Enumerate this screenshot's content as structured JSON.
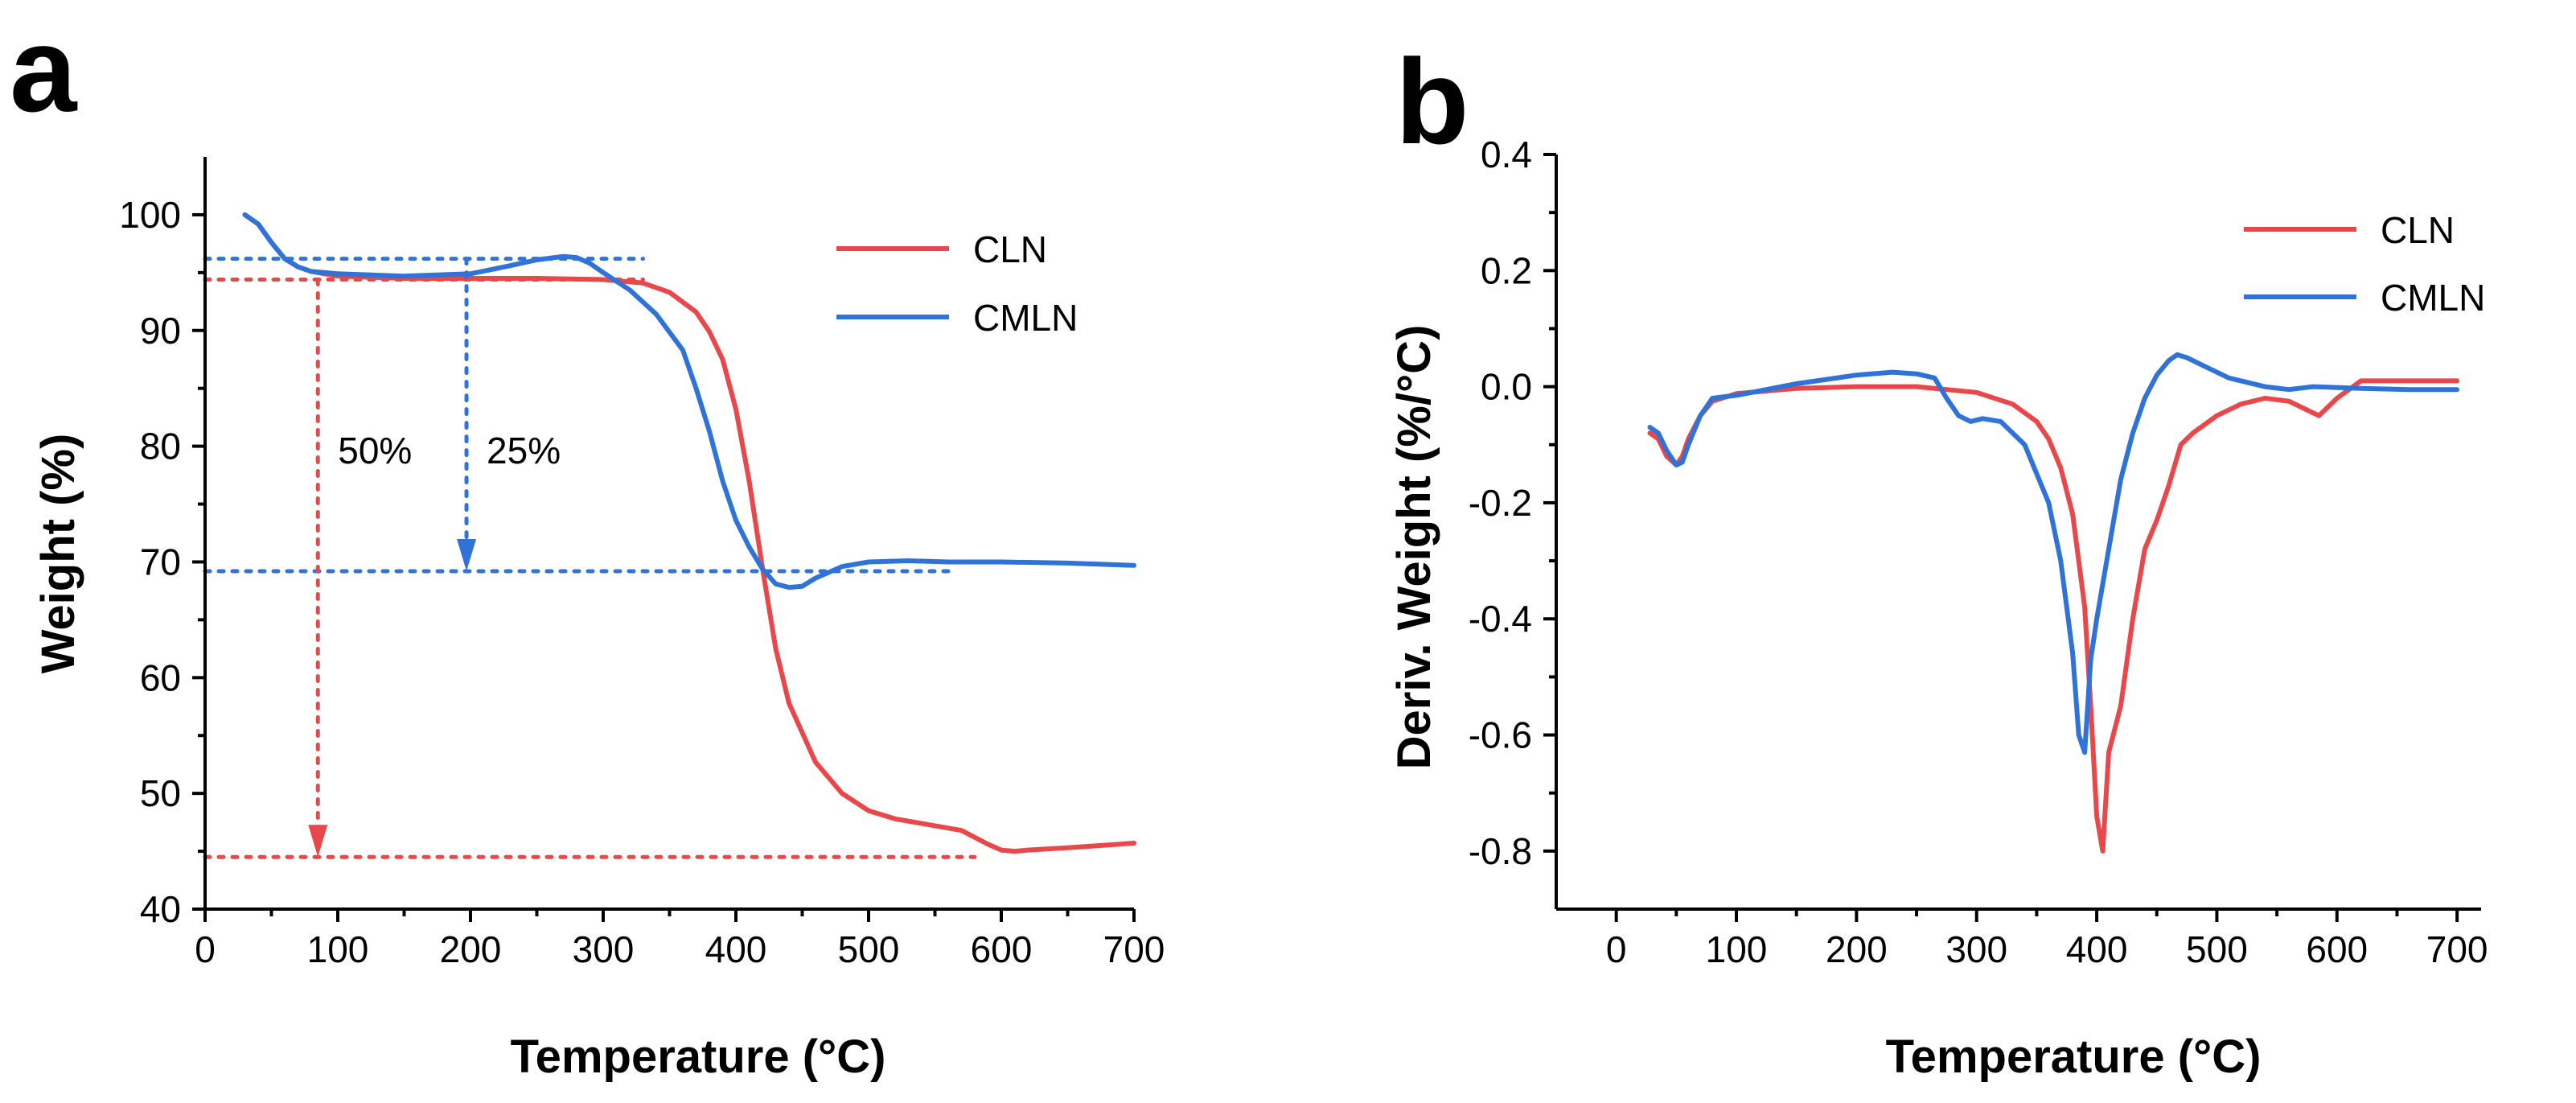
{
  "colors": {
    "CLN": "#e8484a",
    "CMLN": "#2f73d9",
    "axis": "#000000"
  },
  "chart_data": [
    {
      "panel": "a",
      "type": "line",
      "xlabel": "Temperature (°C)",
      "ylabel": "Weight (%)",
      "xlim": [
        0,
        700
      ],
      "ylim": [
        40,
        105
      ],
      "xticks": [
        0,
        100,
        200,
        300,
        400,
        500,
        600,
        700
      ],
      "yticks": [
        40,
        50,
        60,
        70,
        80,
        90,
        100
      ],
      "legend": {
        "position": "top-right",
        "entries": [
          "CLN",
          "CMLN"
        ]
      },
      "series": [
        {
          "name": "CLN",
          "x": [
            30,
            40,
            50,
            60,
            70,
            80,
            100,
            150,
            200,
            250,
            300,
            330,
            350,
            370,
            380,
            390,
            400,
            410,
            420,
            430,
            440,
            460,
            480,
            500,
            520,
            550,
            570,
            590,
            600,
            610,
            620,
            650,
            700
          ],
          "y": [
            100,
            99.2,
            97.6,
            96.2,
            95.5,
            95.1,
            94.7,
            94.5,
            94.5,
            94.5,
            94.4,
            94.1,
            93.3,
            91.6,
            89.9,
            87.5,
            83.2,
            77.0,
            69.5,
            62.5,
            57.8,
            52.7,
            50.0,
            48.5,
            47.8,
            47.2,
            46.8,
            45.6,
            45.1,
            45.0,
            45.1,
            45.3,
            45.7
          ]
        },
        {
          "name": "CMLN",
          "x": [
            30,
            40,
            50,
            60,
            70,
            80,
            100,
            150,
            200,
            230,
            250,
            270,
            280,
            290,
            300,
            320,
            340,
            360,
            370,
            380,
            390,
            400,
            410,
            420,
            430,
            440,
            450,
            460,
            480,
            500,
            530,
            560,
            600,
            650,
            700
          ],
          "y": [
            100,
            99.2,
            97.6,
            96.2,
            95.5,
            95.1,
            94.9,
            94.7,
            94.9,
            95.6,
            96.1,
            96.4,
            96.3,
            95.8,
            95.0,
            93.5,
            91.4,
            88.3,
            85.0,
            81.3,
            77.0,
            73.6,
            71.3,
            69.4,
            68.1,
            67.8,
            67.9,
            68.6,
            69.6,
            70.0,
            70.1,
            70.0,
            70.0,
            69.9,
            69.7
          ]
        }
      ],
      "annotations": [
        {
          "text": "50%",
          "series": "CLN",
          "x": 85,
          "from": 94.4,
          "to": 44.5
        },
        {
          "text": "25%",
          "series": "CMLN",
          "x": 197,
          "from": 96.2,
          "to": 69.2
        }
      ],
      "guide_lines": [
        {
          "series": "CLN",
          "y": 94.4,
          "x_range": [
            0,
            330
          ]
        },
        {
          "series": "CMLN",
          "y": 96.2,
          "x_range": [
            0,
            330
          ]
        },
        {
          "series": "CMLN",
          "y": 69.2,
          "x_range": [
            0,
            560
          ]
        },
        {
          "series": "CLN",
          "y": 44.5,
          "x_range": [
            0,
            580
          ]
        }
      ]
    },
    {
      "panel": "b",
      "type": "line",
      "xlabel": "Temperature (°C)",
      "ylabel": "Deriv. Weight (%/°C)",
      "xlim": [
        -50,
        720
      ],
      "ylim": [
        -0.9,
        0.4
      ],
      "xticks": [
        0,
        100,
        200,
        300,
        400,
        500,
        600,
        700
      ],
      "yticks": [
        -0.8,
        -0.6,
        -0.4,
        -0.2,
        0.0,
        0.2,
        0.4
      ],
      "ytick_labels": [
        "-0.8",
        "-0.6",
        "-0.4",
        "-0.2",
        "0.0",
        "0.2",
        "0.4"
      ],
      "legend": {
        "position": "top-right",
        "entries": [
          "CLN",
          "CMLN"
        ]
      },
      "series": [
        {
          "name": "CLN",
          "x": [
            28,
            35,
            42,
            50,
            55,
            60,
            70,
            80,
            100,
            150,
            200,
            250,
            300,
            330,
            350,
            360,
            370,
            380,
            390,
            395,
            400,
            405,
            410,
            420,
            430,
            440,
            450,
            460,
            470,
            480,
            500,
            520,
            540,
            560,
            575,
            585,
            600,
            620,
            650,
            700
          ],
          "y": [
            -0.08,
            -0.09,
            -0.12,
            -0.135,
            -0.12,
            -0.09,
            -0.05,
            -0.025,
            -0.012,
            -0.003,
            0,
            0,
            -0.01,
            -0.03,
            -0.06,
            -0.09,
            -0.14,
            -0.22,
            -0.38,
            -0.55,
            -0.74,
            -0.8,
            -0.63,
            -0.55,
            -0.4,
            -0.28,
            -0.23,
            -0.17,
            -0.1,
            -0.08,
            -0.05,
            -0.03,
            -0.02,
            -0.025,
            -0.04,
            -0.05,
            -0.02,
            0.01,
            0.01,
            0.01
          ]
        },
        {
          "name": "CMLN",
          "x": [
            28,
            35,
            42,
            50,
            55,
            60,
            70,
            80,
            100,
            150,
            200,
            230,
            250,
            265,
            275,
            285,
            295,
            305,
            320,
            340,
            360,
            370,
            380,
            385,
            390,
            395,
            400,
            410,
            420,
            430,
            440,
            450,
            460,
            467,
            475,
            490,
            510,
            540,
            560,
            580,
            620,
            660,
            700
          ],
          "y": [
            -0.07,
            -0.08,
            -0.11,
            -0.135,
            -0.13,
            -0.1,
            -0.05,
            -0.02,
            -0.015,
            0.005,
            0.02,
            0.025,
            0.022,
            0.015,
            -0.02,
            -0.05,
            -0.06,
            -0.055,
            -0.06,
            -0.1,
            -0.2,
            -0.3,
            -0.46,
            -0.6,
            -0.63,
            -0.47,
            -0.4,
            -0.28,
            -0.16,
            -0.08,
            -0.02,
            0.02,
            0.045,
            0.055,
            0.05,
            0.035,
            0.015,
            0,
            -0.005,
            0,
            -0.003,
            -0.005,
            -0.005
          ]
        }
      ]
    }
  ]
}
